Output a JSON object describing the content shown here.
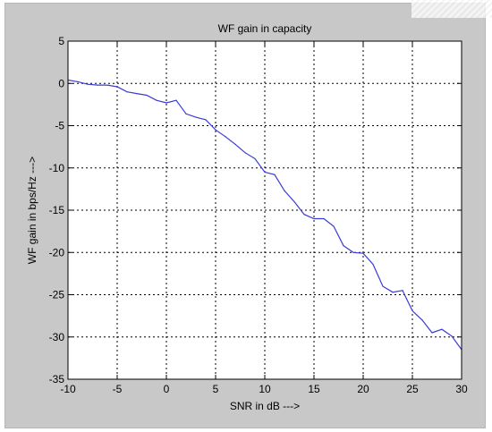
{
  "chart_data": {
    "type": "line",
    "title": "WF gain in capacity",
    "xlabel": "SNR in dB --->",
    "ylabel": "WF gain in bps/Hz --->",
    "xlim": [
      -10,
      30
    ],
    "ylim": [
      -35,
      5
    ],
    "x_ticks": [
      -10,
      -5,
      0,
      5,
      10,
      15,
      20,
      25,
      30
    ],
    "y_ticks": [
      5,
      0,
      -5,
      -10,
      -15,
      -20,
      -25,
      -30,
      -35
    ],
    "x_tick_labels": [
      "-10",
      "-5",
      "0",
      "5",
      "10",
      "15",
      "20",
      "25",
      "30"
    ],
    "y_tick_labels": [
      "5",
      "0",
      "-5",
      "-10",
      "-15",
      "-20",
      "-25",
      "-30",
      "-35"
    ],
    "grid": true,
    "grid_style": "dotted",
    "series": [
      {
        "color": "#3b3bd6",
        "x": [
          -10,
          -9,
          -8,
          -7,
          -6,
          -5,
          -4,
          -3,
          -2,
          -1,
          0,
          1,
          2,
          3,
          4,
          5,
          6,
          7,
          8,
          9,
          10,
          11,
          12,
          13,
          14,
          15,
          16,
          17,
          18,
          19,
          20,
          21,
          22,
          23,
          24,
          25,
          26,
          27,
          28,
          29,
          30
        ],
        "y": [
          0.4,
          0.2,
          -0.1,
          -0.2,
          -0.2,
          -0.4,
          -1.0,
          -1.2,
          -1.4,
          -2.0,
          -2.3,
          -2.0,
          -3.6,
          -4.0,
          -4.3,
          -5.5,
          -6.3,
          -7.2,
          -8.2,
          -8.9,
          -10.5,
          -10.8,
          -12.7,
          -14.0,
          -15.5,
          -16.0,
          -16.0,
          -16.9,
          -19.2,
          -20.0,
          -20.1,
          -21.4,
          -24.0,
          -24.7,
          -24.5,
          -26.9,
          -28.0,
          -29.5,
          -29.1,
          -29.9,
          -31.5
        ]
      }
    ]
  },
  "colors": {
    "panel_background": "#c8c8c8",
    "axes_background": "#ffffff",
    "line": "#3b3bd6",
    "grid": "#000000"
  }
}
